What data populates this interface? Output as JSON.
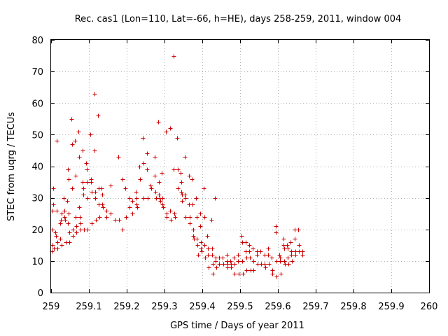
{
  "chart_data": {
    "type": "scatter",
    "title": "Rec. cas1 (Lon=110, Lat=-66, h=HE), days 258-259, 2011, window 004",
    "xlabel": "GPS time / Days of year 2011",
    "ylabel": "STEC from uqrg / TECUs",
    "xlim": [
      259,
      260
    ],
    "ylim": [
      0,
      80
    ],
    "xticks": [
      "259",
      "259.1",
      "259.2",
      "259.3",
      "259.4",
      "259.5",
      "259.6",
      "259.7",
      "259.8",
      "259.9",
      "260"
    ],
    "yticks": [
      "0",
      "10",
      "20",
      "30",
      "40",
      "50",
      "60",
      "70",
      "80"
    ],
    "grid": true,
    "marker": "+",
    "color": "#cc0000",
    "points": [
      [
        259.002,
        13
      ],
      [
        259.003,
        15
      ],
      [
        259.004,
        20
      ],
      [
        259.004,
        26
      ],
      [
        259.005,
        28
      ],
      [
        259.006,
        33
      ],
      [
        259.007,
        14
      ],
      [
        259.012,
        19
      ],
      [
        259.013,
        18
      ],
      [
        259.014,
        26
      ],
      [
        259.015,
        48
      ],
      [
        259.016,
        14
      ],
      [
        259.017,
        16
      ],
      [
        259.024,
        22
      ],
      [
        259.025,
        17
      ],
      [
        259.026,
        23
      ],
      [
        259.027,
        25
      ],
      [
        259.028,
        15
      ],
      [
        259.034,
        30
      ],
      [
        259.035,
        26
      ],
      [
        259.036,
        24
      ],
      [
        259.037,
        23
      ],
      [
        259.038,
        16
      ],
      [
        259.043,
        29
      ],
      [
        259.044,
        22
      ],
      [
        259.045,
        39
      ],
      [
        259.046,
        36
      ],
      [
        259.047,
        25
      ],
      [
        259.048,
        19
      ],
      [
        259.049,
        16
      ],
      [
        259.054,
        55
      ],
      [
        259.055,
        47
      ],
      [
        259.056,
        33
      ],
      [
        259.057,
        20
      ],
      [
        259.058,
        18
      ],
      [
        259.063,
        48
      ],
      [
        259.064,
        37
      ],
      [
        259.065,
        24
      ],
      [
        259.066,
        21
      ],
      [
        259.067,
        19
      ],
      [
        259.073,
        51
      ],
      [
        259.074,
        43
      ],
      [
        259.075,
        27
      ],
      [
        259.076,
        24
      ],
      [
        259.077,
        22
      ],
      [
        259.078,
        20
      ],
      [
        259.083,
        45
      ],
      [
        259.084,
        35
      ],
      [
        259.085,
        33
      ],
      [
        259.086,
        31
      ],
      [
        259.087,
        20
      ],
      [
        259.093,
        41
      ],
      [
        259.094,
        39
      ],
      [
        259.095,
        35
      ],
      [
        259.096,
        30
      ],
      [
        259.097,
        20
      ],
      [
        259.104,
        50
      ],
      [
        259.105,
        36
      ],
      [
        259.106,
        35
      ],
      [
        259.107,
        32
      ],
      [
        259.108,
        22
      ],
      [
        259.114,
        63
      ],
      [
        259.115,
        45
      ],
      [
        259.116,
        32
      ],
      [
        259.117,
        30
      ],
      [
        259.118,
        23
      ],
      [
        259.124,
        56
      ],
      [
        259.125,
        33
      ],
      [
        259.126,
        28
      ],
      [
        259.127,
        24
      ],
      [
        259.134,
        33
      ],
      [
        259.135,
        31
      ],
      [
        259.136,
        28
      ],
      [
        259.137,
        27
      ],
      [
        259.146,
        26
      ],
      [
        259.147,
        24
      ],
      [
        259.157,
        34
      ],
      [
        259.158,
        25
      ],
      [
        259.168,
        23
      ],
      [
        259.169,
        23
      ],
      [
        259.178,
        43
      ],
      [
        259.179,
        23
      ],
      [
        259.188,
        36
      ],
      [
        259.189,
        20
      ],
      [
        259.197,
        33
      ],
      [
        259.198,
        24
      ],
      [
        259.207,
        30
      ],
      [
        259.208,
        27
      ],
      [
        259.214,
        29
      ],
      [
        259.215,
        25
      ],
      [
        259.224,
        32
      ],
      [
        259.225,
        30
      ],
      [
        259.226,
        28
      ],
      [
        259.227,
        27
      ],
      [
        259.234,
        40
      ],
      [
        259.235,
        36
      ],
      [
        259.243,
        49
      ],
      [
        259.244,
        41
      ],
      [
        259.245,
        30
      ],
      [
        259.253,
        44
      ],
      [
        259.254,
        39
      ],
      [
        259.255,
        30
      ],
      [
        259.263,
        34
      ],
      [
        259.264,
        33
      ],
      [
        259.274,
        43
      ],
      [
        259.275,
        37
      ],
      [
        259.276,
        32
      ],
      [
        259.277,
        30
      ],
      [
        259.284,
        54
      ],
      [
        259.285,
        35
      ],
      [
        259.286,
        31
      ],
      [
        259.287,
        30
      ],
      [
        259.288,
        29
      ],
      [
        259.293,
        38
      ],
      [
        259.294,
        30
      ],
      [
        259.295,
        28
      ],
      [
        259.296,
        27
      ],
      [
        259.304,
        51
      ],
      [
        259.305,
        25
      ],
      [
        259.306,
        24
      ],
      [
        259.314,
        52
      ],
      [
        259.315,
        26
      ],
      [
        259.316,
        23
      ],
      [
        259.324,
        75
      ],
      [
        259.325,
        39
      ],
      [
        259.326,
        25
      ],
      [
        259.327,
        24
      ],
      [
        259.334,
        49
      ],
      [
        259.335,
        39
      ],
      [
        259.336,
        33
      ],
      [
        259.343,
        38
      ],
      [
        259.344,
        35
      ],
      [
        259.345,
        32
      ],
      [
        259.346,
        31
      ],
      [
        259.347,
        29
      ],
      [
        259.353,
        43
      ],
      [
        259.354,
        31
      ],
      [
        259.355,
        30
      ],
      [
        259.356,
        24
      ],
      [
        259.364,
        37
      ],
      [
        259.365,
        28
      ],
      [
        259.366,
        24
      ],
      [
        259.367,
        22
      ],
      [
        259.373,
        36
      ],
      [
        259.374,
        28
      ],
      [
        259.375,
        20
      ],
      [
        259.376,
        18
      ],
      [
        259.377,
        17
      ],
      [
        259.384,
        30
      ],
      [
        259.385,
        24
      ],
      [
        259.386,
        17
      ],
      [
        259.387,
        15
      ],
      [
        259.388,
        12
      ],
      [
        259.394,
        25
      ],
      [
        259.395,
        21
      ],
      [
        259.396,
        16
      ],
      [
        259.397,
        14
      ],
      [
        259.398,
        13
      ],
      [
        259.404,
        33
      ],
      [
        259.405,
        24
      ],
      [
        259.406,
        15
      ],
      [
        259.407,
        11
      ],
      [
        259.413,
        18
      ],
      [
        259.414,
        14
      ],
      [
        259.415,
        12
      ],
      [
        259.416,
        8
      ],
      [
        259.424,
        23
      ],
      [
        259.425,
        14
      ],
      [
        259.426,
        12
      ],
      [
        259.427,
        9
      ],
      [
        259.428,
        6
      ],
      [
        259.434,
        30
      ],
      [
        259.435,
        11
      ],
      [
        259.436,
        10
      ],
      [
        259.437,
        8
      ],
      [
        259.444,
        11
      ],
      [
        259.445,
        9
      ],
      [
        259.454,
        11
      ],
      [
        259.455,
        9
      ],
      [
        259.464,
        12
      ],
      [
        259.465,
        10
      ],
      [
        259.466,
        9
      ],
      [
        259.467,
        8
      ],
      [
        259.474,
        10
      ],
      [
        259.475,
        9
      ],
      [
        259.476,
        8
      ],
      [
        259.484,
        11
      ],
      [
        259.485,
        9
      ],
      [
        259.486,
        6
      ],
      [
        259.494,
        12
      ],
      [
        259.495,
        10
      ],
      [
        259.496,
        6
      ],
      [
        259.504,
        18
      ],
      [
        259.505,
        16
      ],
      [
        259.506,
        10
      ],
      [
        259.507,
        6
      ],
      [
        259.514,
        16
      ],
      [
        259.515,
        13
      ],
      [
        259.516,
        11
      ],
      [
        259.517,
        7
      ],
      [
        259.524,
        15
      ],
      [
        259.525,
        13
      ],
      [
        259.526,
        11
      ],
      [
        259.527,
        7
      ],
      [
        259.534,
        14
      ],
      [
        259.535,
        10
      ],
      [
        259.536,
        7
      ],
      [
        259.544,
        13
      ],
      [
        259.545,
        12
      ],
      [
        259.546,
        9
      ],
      [
        259.554,
        13
      ],
      [
        259.555,
        9
      ],
      [
        259.556,
        9
      ],
      [
        259.564,
        12
      ],
      [
        259.565,
        9
      ],
      [
        259.566,
        8
      ],
      [
        259.574,
        14
      ],
      [
        259.575,
        12
      ],
      [
        259.576,
        9
      ],
      [
        259.584,
        11
      ],
      [
        259.585,
        7
      ],
      [
        259.586,
        6
      ],
      [
        259.594,
        21
      ],
      [
        259.595,
        19
      ],
      [
        259.596,
        10
      ],
      [
        259.597,
        5
      ],
      [
        259.604,
        12
      ],
      [
        259.605,
        11
      ],
      [
        259.606,
        10
      ],
      [
        259.607,
        6
      ],
      [
        259.614,
        17
      ],
      [
        259.615,
        15
      ],
      [
        259.616,
        14
      ],
      [
        259.617,
        10
      ],
      [
        259.618,
        9
      ],
      [
        259.624,
        15
      ],
      [
        259.625,
        14
      ],
      [
        259.626,
        11
      ],
      [
        259.627,
        9
      ],
      [
        259.634,
        16
      ],
      [
        259.635,
        13
      ],
      [
        259.636,
        12
      ],
      [
        259.637,
        10
      ],
      [
        259.644,
        20
      ],
      [
        259.645,
        17
      ],
      [
        259.646,
        13
      ],
      [
        259.647,
        12
      ],
      [
        259.654,
        20
      ],
      [
        259.655,
        15
      ],
      [
        259.656,
        13
      ],
      [
        259.664,
        13
      ],
      [
        259.665,
        12
      ]
    ]
  }
}
